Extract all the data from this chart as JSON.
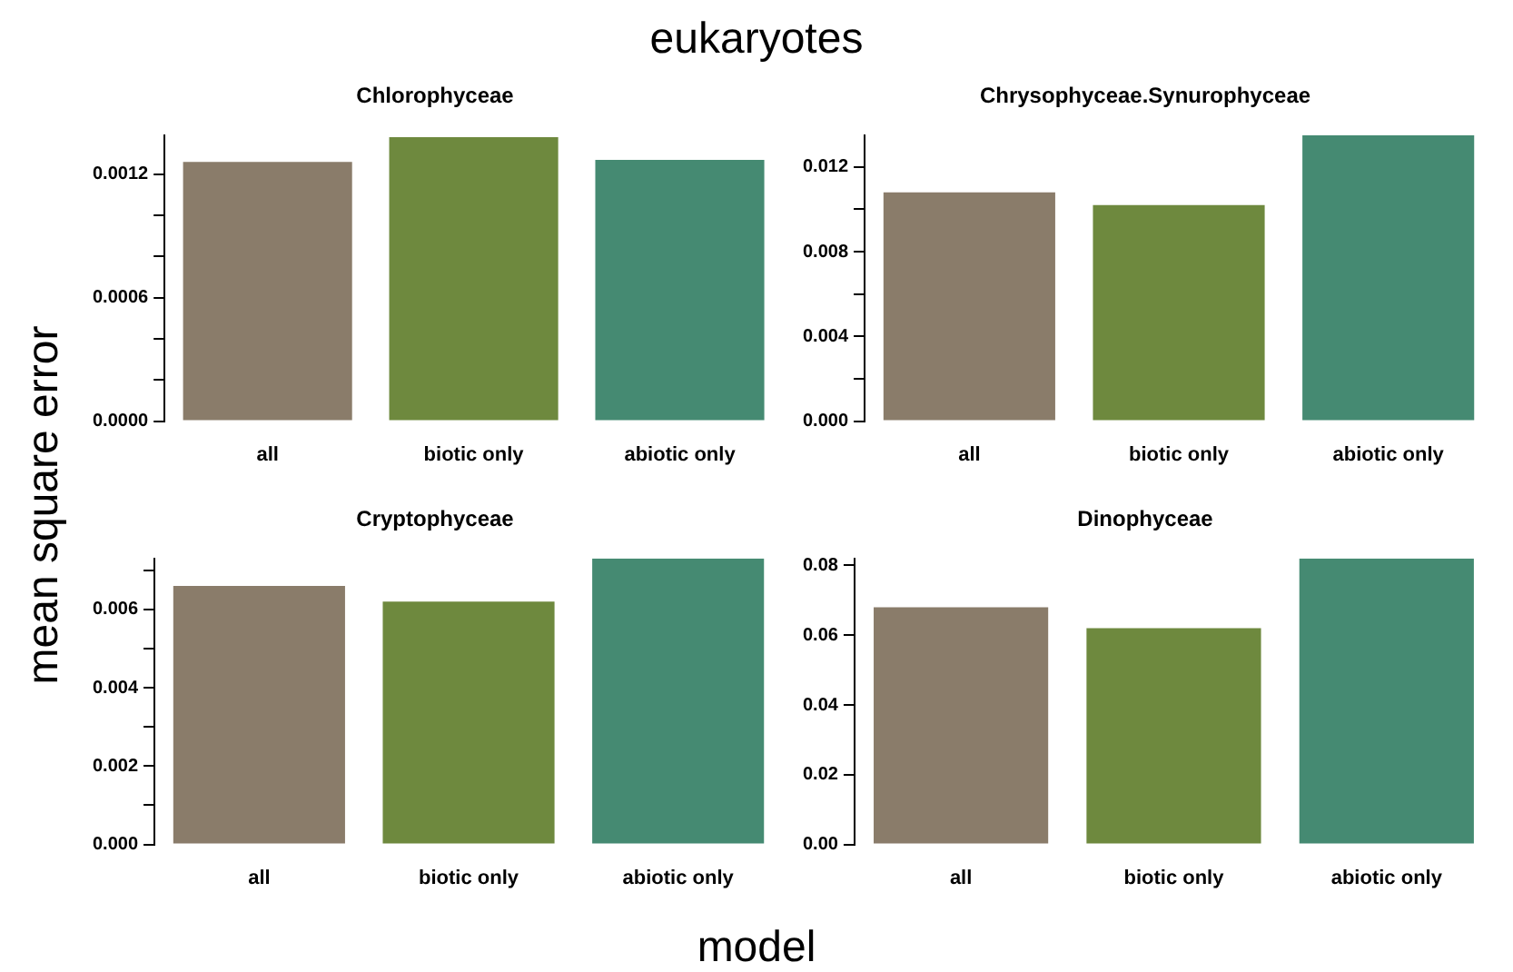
{
  "chart_data": [
    {
      "type": "bar",
      "title": "Chlorophyceae",
      "annotations": [
        "eukaryotes"
      ],
      "ylabel": "mean square error",
      "categories": [
        "all",
        "biotic only",
        "abiotic only"
      ],
      "values": [
        0.00126,
        0.00138,
        0.00127
      ],
      "colors": [
        "#8a7c6a",
        "#6e893e",
        "#458a72"
      ],
      "ylim": [
        0,
        0.00139
      ],
      "yticks": [
        {
          "value": 0,
          "label": "0.0000"
        },
        {
          "value": 0.0002,
          "label": null
        },
        {
          "value": 0.0004,
          "label": null
        },
        {
          "value": 0.0006,
          "label": "0.0006"
        },
        {
          "value": 0.0008,
          "label": null
        },
        {
          "value": 0.001,
          "label": null
        },
        {
          "value": 0.0012,
          "label": "0.0012"
        }
      ],
      "grid": false
    },
    {
      "type": "bar",
      "title": "Chrysophyceae.Synurophyceae",
      "categories": [
        "all",
        "biotic only",
        "abiotic only"
      ],
      "values": [
        0.0108,
        0.0102,
        0.0135
      ],
      "colors": [
        "#8a7c6a",
        "#6e893e",
        "#458a72"
      ],
      "ylim": [
        0,
        0.0135
      ],
      "yticks": [
        {
          "value": 0,
          "label": "0.000"
        },
        {
          "value": 0.002,
          "label": null
        },
        {
          "value": 0.004,
          "label": "0.004"
        },
        {
          "value": 0.006,
          "label": null
        },
        {
          "value": 0.008,
          "label": "0.008"
        },
        {
          "value": 0.01,
          "label": null
        },
        {
          "value": 0.012,
          "label": "0.012"
        }
      ],
      "grid": false
    },
    {
      "type": "bar",
      "title": "Cryptophyceae",
      "xlabel": "model",
      "categories": [
        "all",
        "biotic only",
        "abiotic only"
      ],
      "values": [
        0.0066,
        0.0062,
        0.0073
      ],
      "colors": [
        "#8a7c6a",
        "#6e893e",
        "#458a72"
      ],
      "ylim": [
        0,
        0.0073
      ],
      "yticks": [
        {
          "value": 0,
          "label": "0.000"
        },
        {
          "value": 0.001,
          "label": null
        },
        {
          "value": 0.002,
          "label": "0.002"
        },
        {
          "value": 0.003,
          "label": null
        },
        {
          "value": 0.004,
          "label": "0.004"
        },
        {
          "value": 0.005,
          "label": null
        },
        {
          "value": 0.006,
          "label": "0.006"
        },
        {
          "value": 0.007,
          "label": null
        }
      ],
      "grid": false
    },
    {
      "type": "bar",
      "title": "Dinophyceae",
      "categories": [
        "all",
        "biotic only",
        "abiotic only"
      ],
      "values": [
        0.068,
        0.062,
        0.082
      ],
      "colors": [
        "#8a7c6a",
        "#6e893e",
        "#458a72"
      ],
      "ylim": [
        0,
        0.082
      ],
      "yticks": [
        {
          "value": 0,
          "label": "0.00"
        },
        0.02,
        0.04,
        0.06,
        0.08
      ],
      "grid": false
    }
  ]
}
